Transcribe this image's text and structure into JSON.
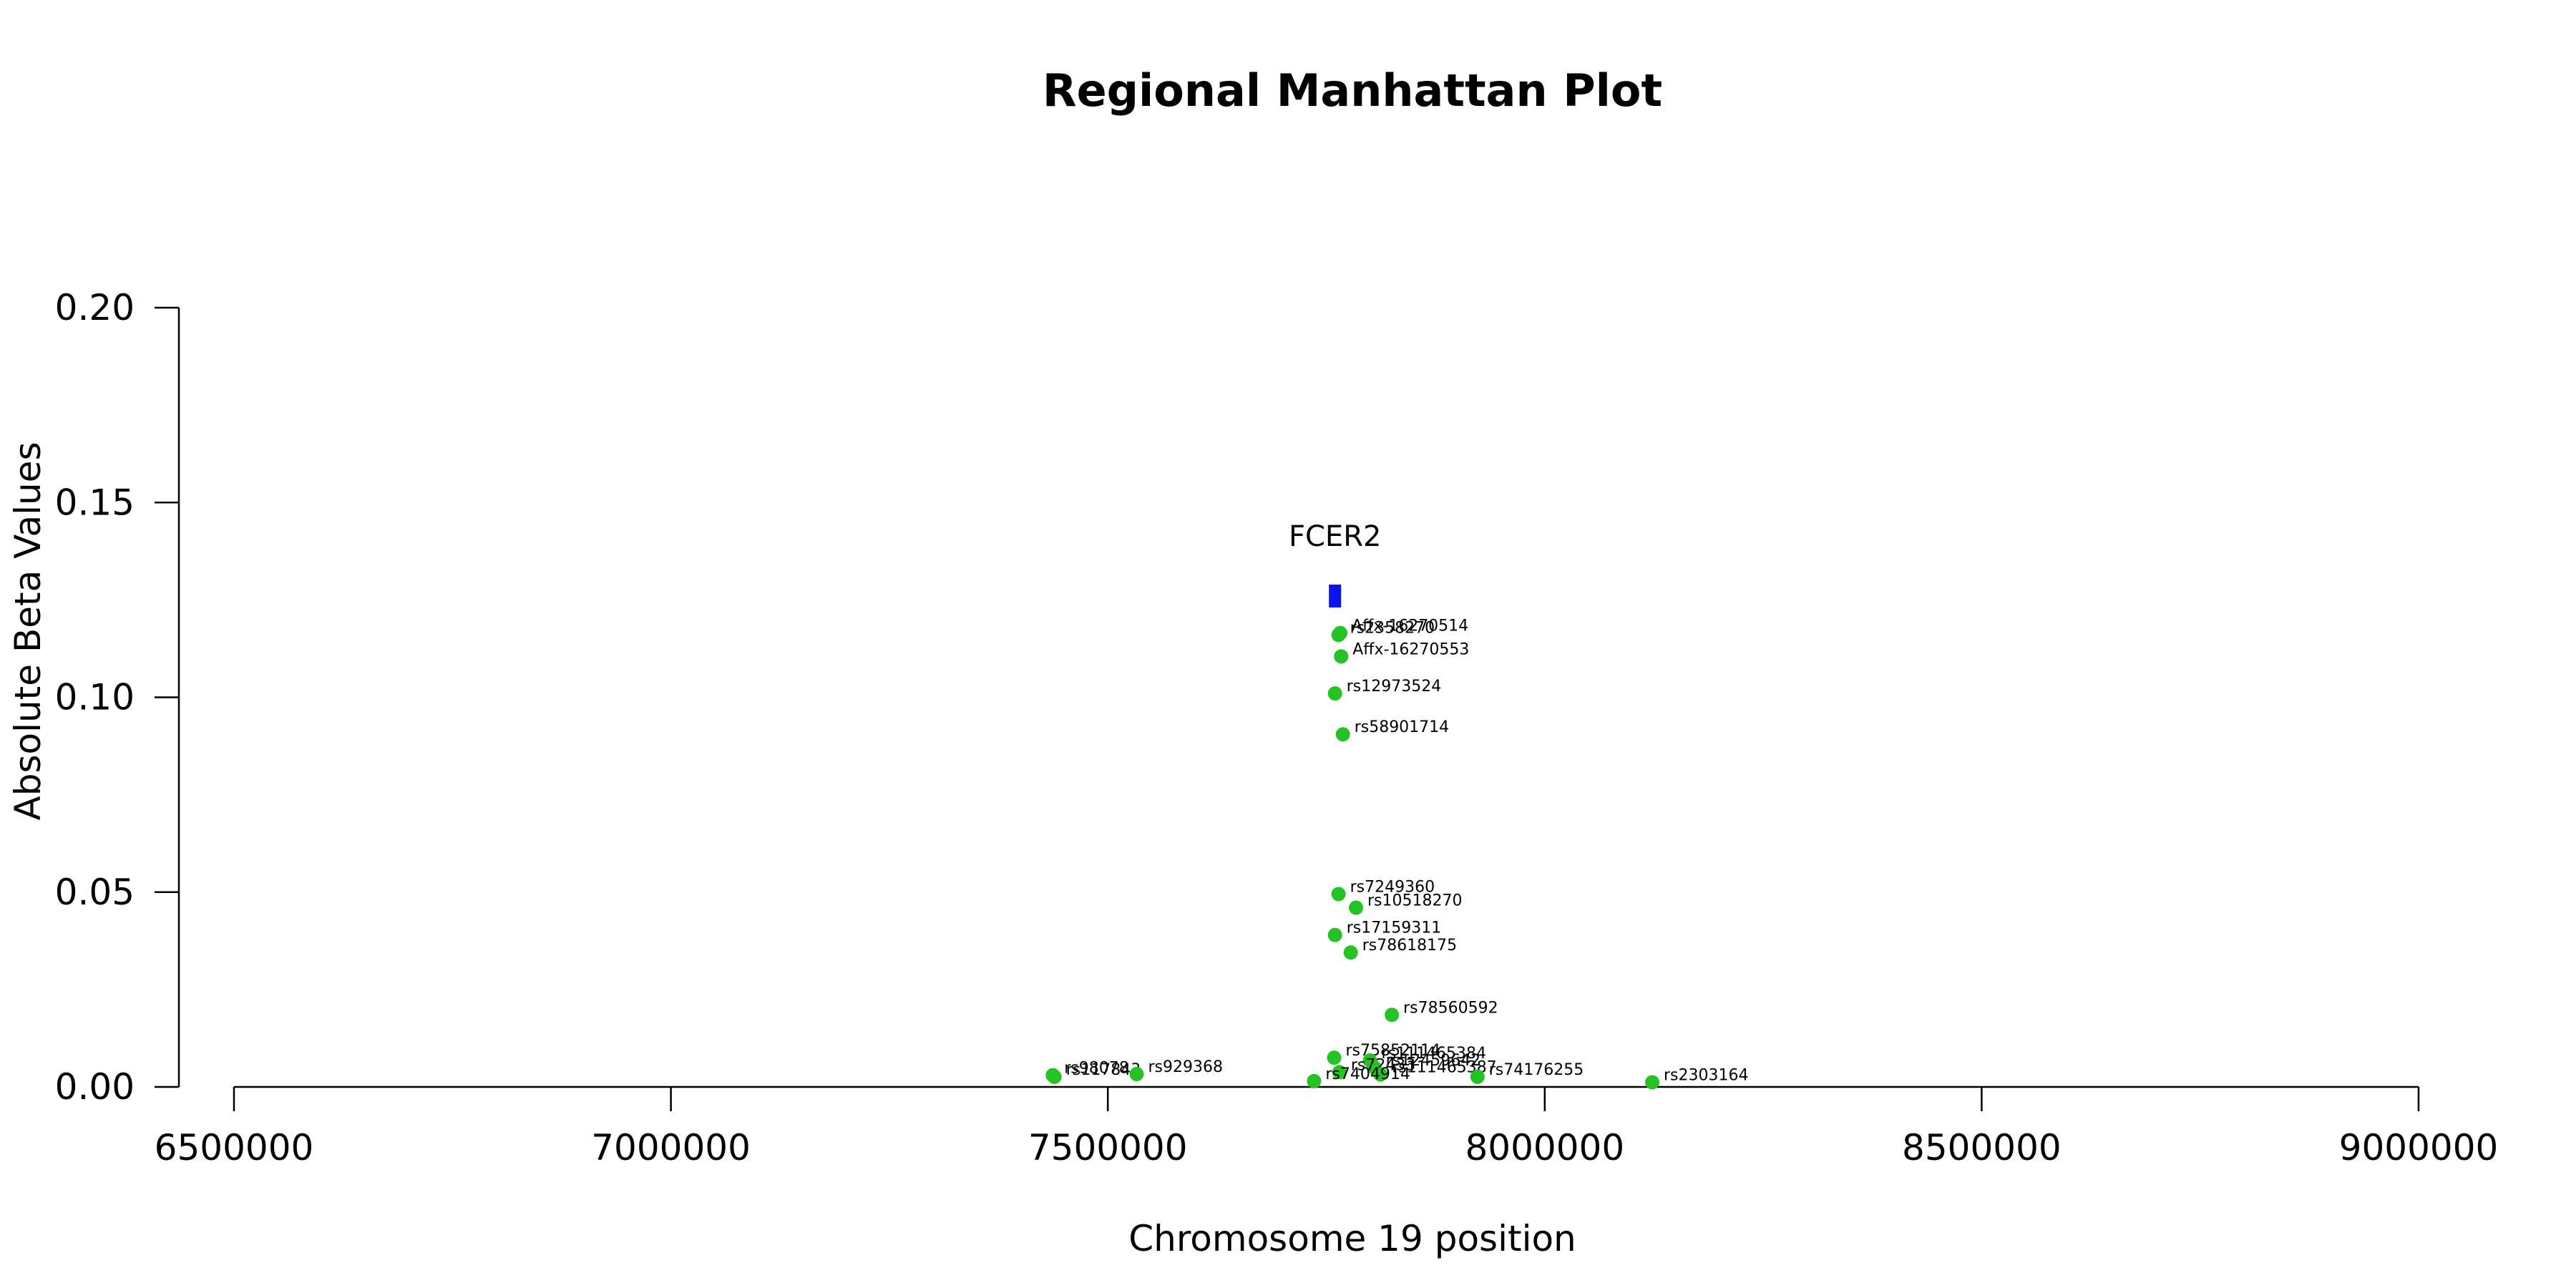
{
  "chart_data": {
    "type": "scatter",
    "title": "Regional Manhattan Plot",
    "xlabel": "Chromosome 19 position",
    "ylabel": "Absolute Beta Values",
    "xlim": [
      6500000,
      9000000
    ],
    "ylim": [
      0,
      0.2
    ],
    "x_ticks": [
      6500000,
      7000000,
      7500000,
      8000000,
      8500000,
      9000000
    ],
    "y_ticks": [
      0.0,
      0.05,
      0.1,
      0.15,
      0.2
    ],
    "x_tick_labels": [
      "6500000",
      "7000000",
      "7500000",
      "8000000",
      "8500000",
      "9000000"
    ],
    "y_tick_labels": [
      "0.00",
      "0.05",
      "0.10",
      "0.15",
      "0.20"
    ],
    "grid": false,
    "point_color": "#22c322",
    "gene_color": "#0a14f0",
    "genes": [
      {
        "name": "FCER2",
        "start": 7753000,
        "end": 7767000,
        "y": 0.126
      }
    ],
    "points": [
      {
        "label": "rs2358270",
        "x": 7764000,
        "y": 0.116
      },
      {
        "label": "Affx-16270514",
        "x": 7766000,
        "y": 0.1165
      },
      {
        "label": "Affx-16270553",
        "x": 7767000,
        "y": 0.1105
      },
      {
        "label": "rs12973524",
        "x": 7760000,
        "y": 0.101
      },
      {
        "label": "rs58901714",
        "x": 7769000,
        "y": 0.0905
      },
      {
        "label": "rs7249360",
        "x": 7764000,
        "y": 0.0495
      },
      {
        "label": "rs10518270",
        "x": 7784000,
        "y": 0.046
      },
      {
        "label": "rs17159311",
        "x": 7760000,
        "y": 0.039
      },
      {
        "label": "rs78618175",
        "x": 7778000,
        "y": 0.0345
      },
      {
        "label": "rs78560592",
        "x": 7825000,
        "y": 0.0185
      },
      {
        "label": "rs75852114",
        "x": 7759000,
        "y": 0.0075
      },
      {
        "label": "rs111465384",
        "x": 7800000,
        "y": 0.0068
      },
      {
        "label": "rs12459642",
        "x": 7805000,
        "y": 0.005
      },
      {
        "label": "rs72433",
        "x": 7765000,
        "y": 0.0038
      },
      {
        "label": "rs111465387",
        "x": 7812000,
        "y": 0.0032
      },
      {
        "label": "rs74176255",
        "x": 7923000,
        "y": 0.0026
      },
      {
        "label": "rs7404914",
        "x": 7736000,
        "y": 0.0015
      },
      {
        "label": "rs2303164",
        "x": 8123000,
        "y": 0.0012
      },
      {
        "label": "rs98078",
        "x": 7437000,
        "y": 0.003
      },
      {
        "label": "rs117843",
        "x": 7439000,
        "y": 0.0026
      },
      {
        "label": "rs929368",
        "x": 7533000,
        "y": 0.0033
      }
    ]
  }
}
